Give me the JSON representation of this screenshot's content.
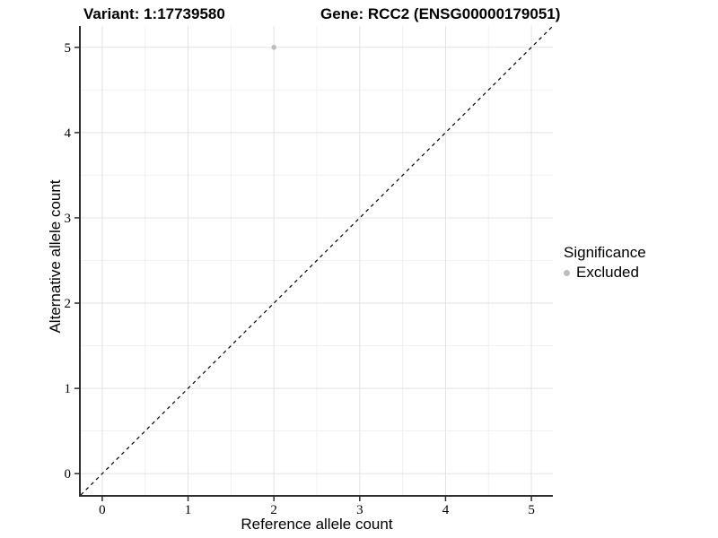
{
  "title": {
    "variant": "Variant: 1:17739580",
    "gene": "Gene: RCC2 (ENSG00000179051)"
  },
  "chart_data": {
    "type": "scatter",
    "title_left": "Variant: 1:17739580",
    "title_right": "Gene: RCC2 (ENSG00000179051)",
    "xlabel": "Reference allele count",
    "ylabel": "Alternative allele count",
    "xlim": [
      -0.25,
      5.25
    ],
    "ylim": [
      -0.25,
      5.25
    ],
    "xticks": [
      0,
      1,
      2,
      3,
      4,
      5
    ],
    "yticks": [
      0,
      1,
      2,
      3,
      4,
      5
    ],
    "minor_grid_step": 0.5,
    "grid": true,
    "identity_line": {
      "style": "dashed",
      "slope": 1,
      "intercept": 0,
      "color": "#000000"
    },
    "series": [
      {
        "name": "Excluded",
        "color": "#bebebe",
        "points": [
          [
            2,
            5
          ]
        ]
      }
    ],
    "legend": {
      "title": "Significance",
      "position": "right",
      "entries": [
        {
          "label": "Excluded",
          "color": "#bebebe",
          "marker": "circle"
        }
      ]
    }
  },
  "colors": {
    "background": "#ffffff",
    "grid_major": "#e3e3e3",
    "grid_minor": "#f1f1f1",
    "axis_line": "#2e2e2e",
    "text": "#000000",
    "point": "#bebebe"
  }
}
